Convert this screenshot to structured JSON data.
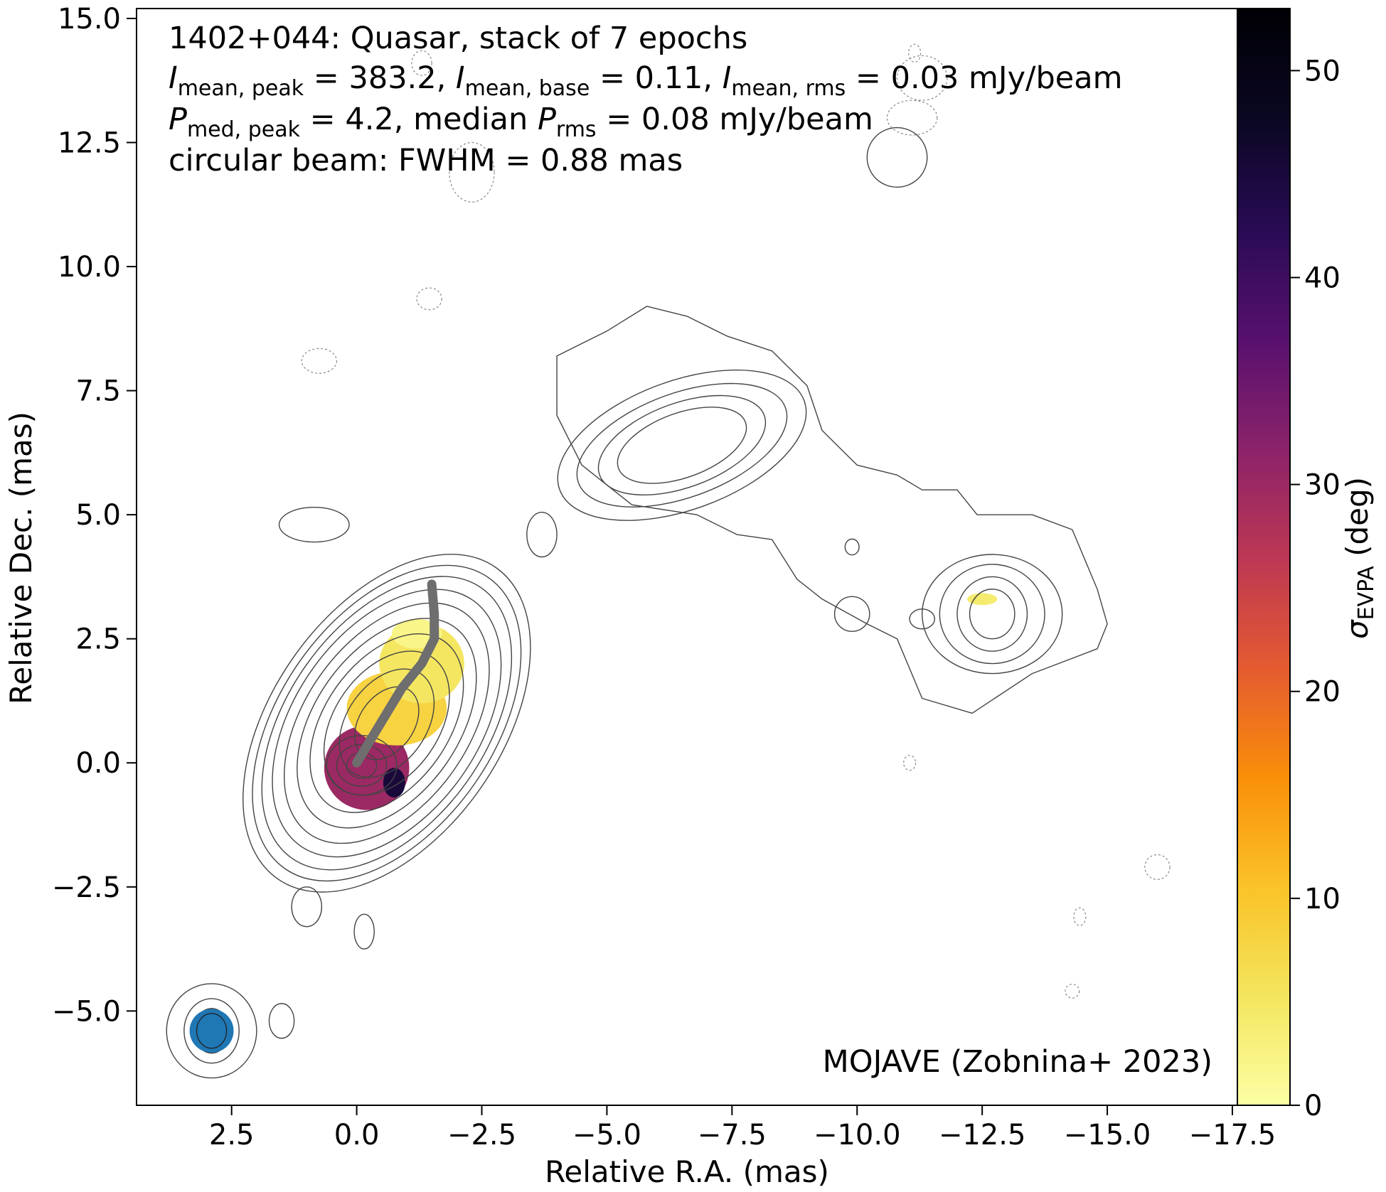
{
  "chart_data": {
    "type": "heatmap",
    "annotations": {
      "line1": "1402+044: Quasar, stack of 7 epochs",
      "line2": {
        "i_peak_sym": "I",
        "i_peak_sub": "mean, peak",
        "i_peak_val": " = 383.2, ",
        "i_base_sym": "I",
        "i_base_sub": "mean, base",
        "i_base_val": " = 0.11, ",
        "i_rms_sym": "I",
        "i_rms_sub": "mean, rms",
        "i_rms_val": " = 0.03 mJy/beam"
      },
      "line3": {
        "p_peak_sym": "P",
        "p_peak_sub": "med, peak",
        "p_peak_val": " = 4.2, median ",
        "p_rms_sym": "P",
        "p_rms_sub": "rms",
        "p_rms_val": " = 0.08 mJy/beam"
      },
      "line4": "circular beam: FWHM = 0.88 mas",
      "credit": "MOJAVE (Zobnina+ 2023)"
    },
    "xlabel": "Relative R.A. (mas)",
    "ylabel": "Relative Dec. (mas)",
    "colorbar_label": {
      "sym": "σ",
      "sub": "EVPA",
      "rest": " (deg)"
    },
    "xlim": [
      4.4,
      -17.6
    ],
    "ylim": [
      -6.9,
      15.2
    ],
    "xticks": [
      2.5,
      0.0,
      -2.5,
      -5.0,
      -7.5,
      -10.0,
      -12.5,
      -15.0,
      -17.5
    ],
    "xtick_labels": [
      "2.5",
      "0.0",
      "−2.5",
      "−5.0",
      "−7.5",
      "−10.0",
      "−12.5",
      "−15.0",
      "−17.5"
    ],
    "yticks": [
      -5.0,
      -2.5,
      0.0,
      2.5,
      5.0,
      7.5,
      10.0,
      12.5,
      15.0
    ],
    "ytick_labels": [
      "−5.0",
      "−2.5",
      "0.0",
      "2.5",
      "5.0",
      "7.5",
      "10.0",
      "12.5",
      "15.0"
    ],
    "colorbar_range": [
      0,
      53
    ],
    "colorbar_ticks": [
      0,
      10,
      20,
      30,
      40,
      50
    ],
    "colormap": "inferno_r",
    "grid": false,
    "beam": {
      "x": 2.9,
      "y": -5.4,
      "fwhm_mas": 0.88,
      "color": "#1f77b4"
    },
    "ridge_line": {
      "color": "#6e6e6e",
      "points": [
        [
          0.0,
          0.0
        ],
        [
          -0.3,
          0.5
        ],
        [
          -0.6,
          1.0
        ],
        [
          -0.9,
          1.5
        ],
        [
          -1.3,
          2.0
        ],
        [
          -1.55,
          2.5
        ],
        [
          -1.55,
          3.0
        ],
        [
          -1.5,
          3.6
        ]
      ]
    },
    "evpa_regions": [
      {
        "label": "core",
        "x": -0.2,
        "y": -0.1,
        "rx": 0.85,
        "ry": 0.85,
        "value": 30
      },
      {
        "label": "core-edge",
        "x": -0.75,
        "y": -0.4,
        "rx": 0.22,
        "ry": 0.3,
        "value": 45
      },
      {
        "label": "inner-jet-lower",
        "x": -0.8,
        "y": 1.1,
        "rx": 1.0,
        "ry": 0.75,
        "value": 8
      },
      {
        "label": "inner-jet-upper",
        "x": -1.3,
        "y": 2.0,
        "rx": 0.85,
        "ry": 0.8,
        "value": 5
      },
      {
        "label": "jet-tip",
        "x": -1.2,
        "y": 2.6,
        "rx": 0.5,
        "ry": 0.3,
        "value": 2
      },
      {
        "label": "far-knot",
        "x": -12.5,
        "y": 3.3,
        "rx": 0.3,
        "ry": 0.12,
        "value": 4
      }
    ],
    "contours": {
      "solid_color": "#444444",
      "core": {
        "x": -0.6,
        "y": 0.8,
        "radii": [
          [
            3.8,
            2.3
          ],
          [
            3.55,
            2.15
          ],
          [
            3.3,
            2.0
          ],
          [
            3.0,
            1.85
          ],
          [
            2.7,
            1.65
          ],
          [
            2.35,
            1.45
          ],
          [
            2.0,
            1.25
          ],
          [
            1.6,
            1.05
          ],
          [
            1.2,
            0.8
          ],
          [
            0.8,
            0.55
          ]
        ],
        "angle_deg": -55
      },
      "inner_core": {
        "x": -0.1,
        "y": -0.05,
        "radii": [
          [
            0.7,
            0.6
          ],
          [
            0.5,
            0.42
          ],
          [
            0.3,
            0.26
          ]
        ]
      },
      "main_lobe": {
        "x": -6.5,
        "y": 6.4,
        "radii": [
          [
            2.6,
            1.3
          ],
          [
            2.2,
            1.05
          ],
          [
            1.75,
            0.85
          ],
          [
            1.35,
            0.65
          ]
        ],
        "angle_deg": -20
      },
      "main_lobe_outer": [
        [
          -4.0,
          8.2
        ],
        [
          -5.0,
          8.7
        ],
        [
          -5.8,
          9.2
        ],
        [
          -6.6,
          9.0
        ],
        [
          -7.4,
          8.6
        ],
        [
          -8.3,
          8.3
        ],
        [
          -9.0,
          7.6
        ],
        [
          -9.3,
          6.7
        ],
        [
          -10.0,
          6.0
        ],
        [
          -10.8,
          5.8
        ],
        [
          -11.3,
          5.5
        ],
        [
          -12.0,
          5.5
        ],
        [
          -12.4,
          5.0
        ],
        [
          -13.5,
          5.0
        ],
        [
          -14.3,
          4.7
        ],
        [
          -14.8,
          3.5
        ],
        [
          -15.0,
          2.8
        ],
        [
          -14.8,
          2.3
        ],
        [
          -13.5,
          1.8
        ],
        [
          -12.3,
          1.0
        ],
        [
          -11.3,
          1.3
        ],
        [
          -10.8,
          2.5
        ],
        [
          -10.2,
          2.8
        ],
        [
          -9.3,
          3.3
        ],
        [
          -8.8,
          3.7
        ],
        [
          -8.3,
          4.5
        ],
        [
          -7.6,
          4.6
        ],
        [
          -6.8,
          5.0
        ],
        [
          -5.5,
          5.2
        ],
        [
          -4.5,
          6.0
        ],
        [
          -4.0,
          7.0
        ]
      ],
      "east_knot": {
        "x": -12.7,
        "y": 3.0,
        "radii": [
          [
            1.4,
            1.2
          ],
          [
            1.05,
            1.0
          ],
          [
            0.7,
            0.75
          ],
          [
            0.45,
            0.5
          ]
        ]
      },
      "small_solid": [
        {
          "x": 0.85,
          "y": 4.8,
          "rx": 0.7,
          "ry": 0.35
        },
        {
          "x": -3.7,
          "y": 4.6,
          "rx": 0.3,
          "ry": 0.45
        },
        {
          "x": -9.9,
          "y": 4.35,
          "rx": 0.14,
          "ry": 0.16
        },
        {
          "x": -9.9,
          "y": 3.0,
          "rx": 0.35,
          "ry": 0.35
        },
        {
          "x": -11.3,
          "y": 2.9,
          "rx": 0.25,
          "ry": 0.2
        },
        {
          "x": 1.0,
          "y": -2.9,
          "rx": 0.3,
          "ry": 0.4
        },
        {
          "x": -0.15,
          "y": -3.4,
          "rx": 0.2,
          "ry": 0.35
        },
        {
          "x": 1.5,
          "y": -5.2,
          "rx": 0.25,
          "ry": 0.35
        },
        {
          "x": -10.8,
          "y": 12.2,
          "rx": 0.6,
          "ry": 0.6
        }
      ],
      "beam_contours": [
        [
          0.35,
          0.45
        ],
        [
          0.55,
          0.65
        ],
        [
          0.9,
          0.95
        ]
      ],
      "dashed": [
        {
          "x": -1.45,
          "y": 9.35,
          "rx": 0.25,
          "ry": 0.22
        },
        {
          "x": 0.75,
          "y": 8.1,
          "rx": 0.35,
          "ry": 0.25
        },
        {
          "x": -11.15,
          "y": 14.3,
          "rx": 0.12,
          "ry": 0.18
        },
        {
          "x": -11.3,
          "y": 13.8,
          "rx": 0.5,
          "ry": 0.45
        },
        {
          "x": -11.1,
          "y": 13.0,
          "rx": 0.5,
          "ry": 0.35
        },
        {
          "x": -2.3,
          "y": 11.9,
          "rx": 0.45,
          "ry": 0.6
        },
        {
          "x": -1.3,
          "y": 14.1,
          "rx": 0.2,
          "ry": 0.25
        },
        {
          "x": -11.05,
          "y": 0.0,
          "rx": 0.12,
          "ry": 0.15
        },
        {
          "x": -16.0,
          "y": -2.1,
          "rx": 0.25,
          "ry": 0.25
        },
        {
          "x": -14.45,
          "y": -3.1,
          "rx": 0.12,
          "ry": 0.18
        },
        {
          "x": -14.3,
          "y": -4.6,
          "rx": 0.14,
          "ry": 0.14
        }
      ]
    }
  }
}
